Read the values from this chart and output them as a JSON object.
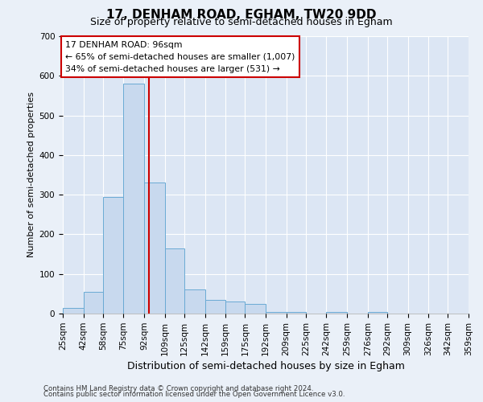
{
  "title": "17, DENHAM ROAD, EGHAM, TW20 9DD",
  "subtitle": "Size of property relative to semi-detached houses in Egham",
  "xlabel": "Distribution of semi-detached houses by size in Egham",
  "ylabel": "Number of semi-detached properties",
  "footer_line1": "Contains HM Land Registry data © Crown copyright and database right 2024.",
  "footer_line2": "Contains public sector information licensed under the Open Government Licence v3.0.",
  "annotation_line1": "17 DENHAM ROAD: 96sqm",
  "annotation_line2": "← 65% of semi-detached houses are smaller (1,007)",
  "annotation_line3": "34% of semi-detached houses are larger (531) →",
  "property_size": 96,
  "bin_edges": [
    25,
    42,
    58,
    75,
    92,
    109,
    125,
    142,
    159,
    175,
    192,
    209,
    225,
    242,
    259,
    276,
    292,
    309,
    326,
    342,
    359
  ],
  "bin_labels": [
    "25sqm",
    "42sqm",
    "58sqm",
    "75sqm",
    "92sqm",
    "109sqm",
    "125sqm",
    "142sqm",
    "159sqm",
    "175sqm",
    "192sqm",
    "209sqm",
    "225sqm",
    "242sqm",
    "259sqm",
    "276sqm",
    "292sqm",
    "309sqm",
    "326sqm",
    "342sqm",
    "359sqm"
  ],
  "counts": [
    15,
    55,
    295,
    580,
    330,
    165,
    60,
    35,
    30,
    25,
    5,
    5,
    0,
    5,
    0,
    5,
    0,
    0,
    0,
    0
  ],
  "bar_color": "#c8d9ee",
  "bar_edge_color": "#6aaad4",
  "vline_color": "#cc0000",
  "box_edge_color": "#cc0000",
  "background_color": "#eaf0f8",
  "plot_bg_color": "#dce6f4",
  "grid_color": "#ffffff",
  "ylim": [
    0,
    700
  ],
  "yticks": [
    0,
    100,
    200,
    300,
    400,
    500,
    600,
    700
  ],
  "title_fontsize": 11,
  "subtitle_fontsize": 9,
  "axis_label_fontsize": 8,
  "tick_fontsize": 7.5
}
